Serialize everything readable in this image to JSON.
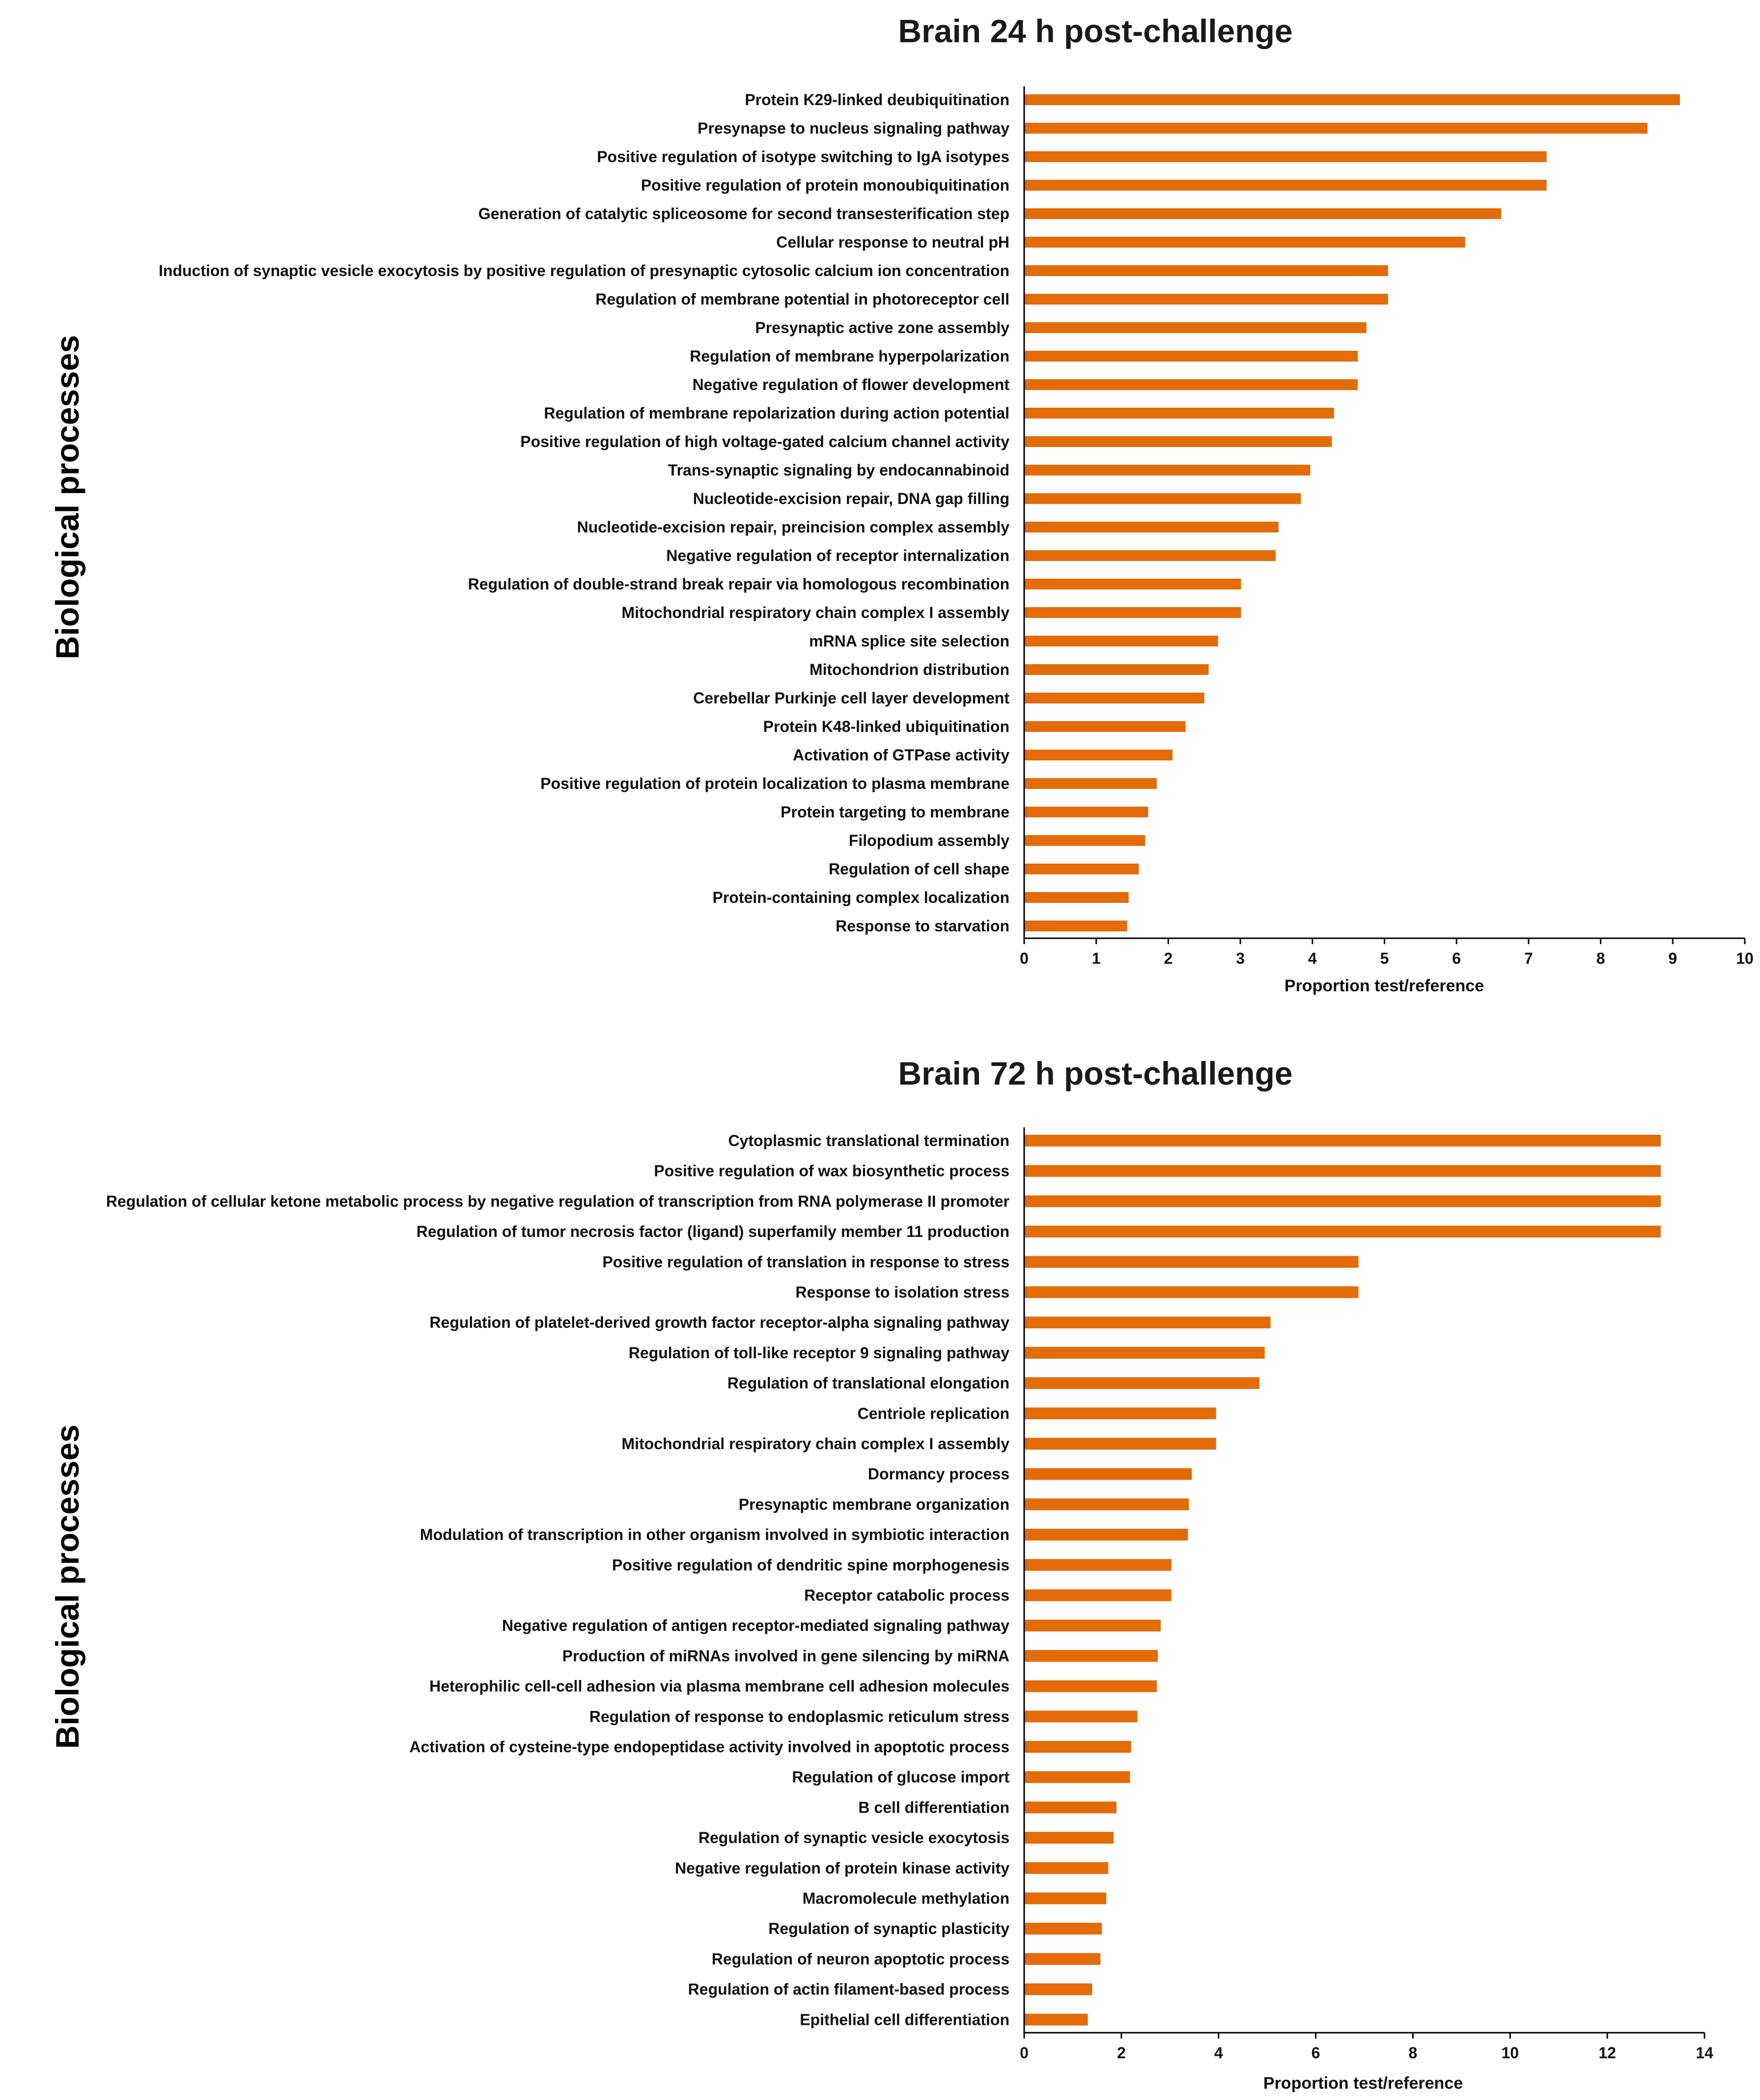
{
  "chart_data": [
    {
      "type": "bar",
      "orientation": "horizontal",
      "title": "Brain 24 h post-challenge",
      "xlabel": "Proportion test/reference",
      "ylabel": "Biological processes",
      "xlim": [
        0,
        10
      ],
      "xticks": [
        0,
        1,
        2,
        3,
        4,
        5,
        6,
        7,
        8,
        9,
        10
      ],
      "bar_color": "#E36C09",
      "grid": false,
      "categories": [
        "Protein K29-linked deubiquitination",
        "Presynapse to nucleus signaling pathway",
        "Positive regulation of isotype switching to IgA isotypes",
        "Positive regulation of protein monoubiquitination",
        "Generation of catalytic spliceosome for second transesterification step",
        "Cellular response to neutral pH",
        "Induction of synaptic vesicle exocytosis by positive regulation of presynaptic cytosolic calcium ion concentration",
        "Regulation of membrane potential in photoreceptor cell",
        "Presynaptic active zone assembly",
        "Regulation of membrane hyperpolarization",
        "Negative regulation of flower development",
        "Regulation of membrane repolarization during action potential",
        "Positive regulation of high voltage-gated calcium channel activity",
        "Trans-synaptic signaling by endocannabinoid",
        "Nucleotide-excision repair, DNA gap filling",
        "Nucleotide-excision repair, preincision complex assembly",
        "Negative regulation of receptor internalization",
        "Regulation of double-strand break repair via homologous recombination",
        "Mitochondrial respiratory chain complex I assembly",
        "mRNA splice site selection",
        "Mitochondrion distribution",
        "Cerebellar Purkinje cell layer development",
        "Protein K48-linked ubiquitination",
        "Activation of GTPase activity",
        "Positive regulation of protein localization to plasma membrane",
        "Protein targeting to membrane",
        "Filopodium assembly",
        "Regulation of cell shape",
        "Protein-containing complex localization",
        "Response to starvation"
      ],
      "values": [
        9.1,
        8.65,
        7.25,
        7.25,
        6.62,
        6.12,
        5.05,
        5.05,
        4.75,
        4.63,
        4.63,
        4.3,
        4.27,
        3.97,
        3.84,
        3.53,
        3.49,
        3.01,
        3.01,
        2.69,
        2.56,
        2.5,
        2.24,
        2.06,
        1.84,
        1.72,
        1.68,
        1.59,
        1.45,
        1.43
      ]
    },
    {
      "type": "bar",
      "orientation": "horizontal",
      "title": "Brain 72 h post-challenge",
      "xlabel": "Proportion test/reference",
      "ylabel": "Biological processes",
      "xlim": [
        0,
        14
      ],
      "xticks": [
        0,
        2,
        4,
        6,
        8,
        10,
        12,
        14
      ],
      "bar_color": "#E36C09",
      "grid": false,
      "categories": [
        "Cytoplasmic translational termination",
        "Positive regulation of wax biosynthetic process",
        "Regulation of cellular ketone metabolic process by negative regulation of transcription from RNA polymerase II promoter",
        "Regulation of tumor necrosis factor (ligand) superfamily member 11 production",
        "Positive regulation of translation in response to stress",
        "Response to isolation stress",
        "Regulation of platelet-derived growth factor receptor-alpha signaling pathway",
        "Regulation of toll-like receptor 9 signaling pathway",
        "Regulation of translational elongation",
        "Centriole replication",
        "Mitochondrial respiratory chain complex I assembly",
        "Dormancy process",
        "Presynaptic membrane organization",
        "Modulation of transcription in other organism involved in symbiotic interaction",
        "Positive regulation of dendritic spine morphogenesis",
        "Receptor catabolic process",
        "Negative regulation of antigen receptor-mediated signaling pathway",
        "Production of miRNAs involved in gene silencing by miRNA",
        "Heterophilic cell-cell adhesion via plasma membrane cell adhesion molecules",
        "Regulation of response to endoplasmic reticulum stress",
        "Activation of cysteine-type endopeptidase activity involved in apoptotic process",
        "Regulation of glucose import",
        "B cell differentiation",
        "Regulation of synaptic vesicle exocytosis",
        "Negative regulation of protein kinase activity",
        "Macromolecule methylation",
        "Regulation of synaptic plasticity",
        "Regulation of neuron apoptotic process",
        "Regulation of actin filament-based process",
        "Epithelial cell differentiation"
      ],
      "values": [
        13.1,
        13.1,
        13.1,
        13.1,
        6.88,
        6.88,
        5.07,
        4.95,
        4.84,
        3.95,
        3.95,
        3.45,
        3.39,
        3.37,
        3.03,
        3.03,
        2.81,
        2.75,
        2.73,
        2.33,
        2.2,
        2.18,
        1.9,
        1.84,
        1.73,
        1.69,
        1.6,
        1.57,
        1.4,
        1.31
      ]
    }
  ]
}
